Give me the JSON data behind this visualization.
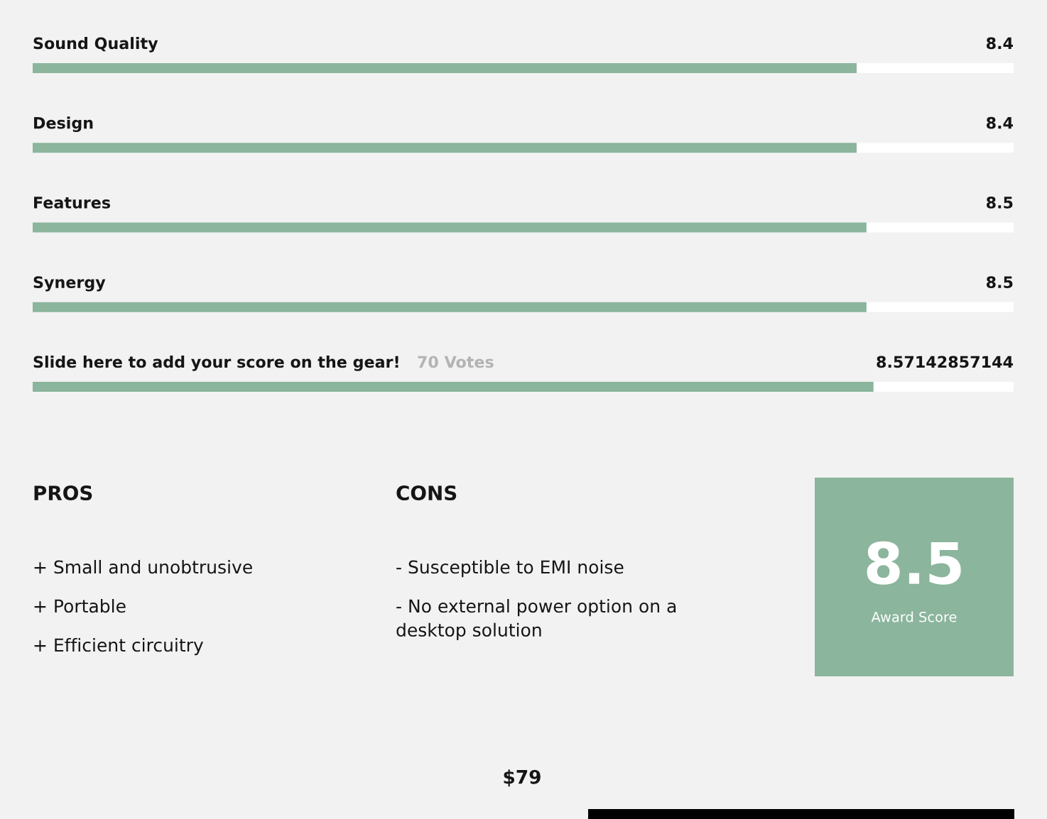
{
  "chart_data": [
    {
      "type": "bar",
      "orientation": "horizontal",
      "categories": [
        "Sound Quality",
        "Design",
        "Features",
        "Synergy",
        "Slide here to add your score on the gear!"
      ],
      "values": [
        8.4,
        8.4,
        8.5,
        8.5,
        8.57142857144
      ],
      "color": "#8bb59d",
      "xlim": [
        0,
        10
      ],
      "data_labels": true,
      "annotations": [
        "70 Votes"
      ]
    },
    {
      "type": "other",
      "title": "PROS",
      "annotations": [
        "+ Small and unobtrusive",
        "+ Portable",
        "+ Efficient circuitry"
      ]
    },
    {
      "type": "other",
      "title": "CONS",
      "annotations": [
        "- Susceptible to EMI noise",
        "- No external power option on a desktop solution"
      ]
    },
    {
      "type": "other",
      "categories": [
        "Award Score"
      ],
      "values": [
        8.5
      ],
      "color": "#8bb59d",
      "data_labels": true
    },
    {
      "type": "other",
      "annotations": [
        "$79"
      ]
    }
  ]
}
